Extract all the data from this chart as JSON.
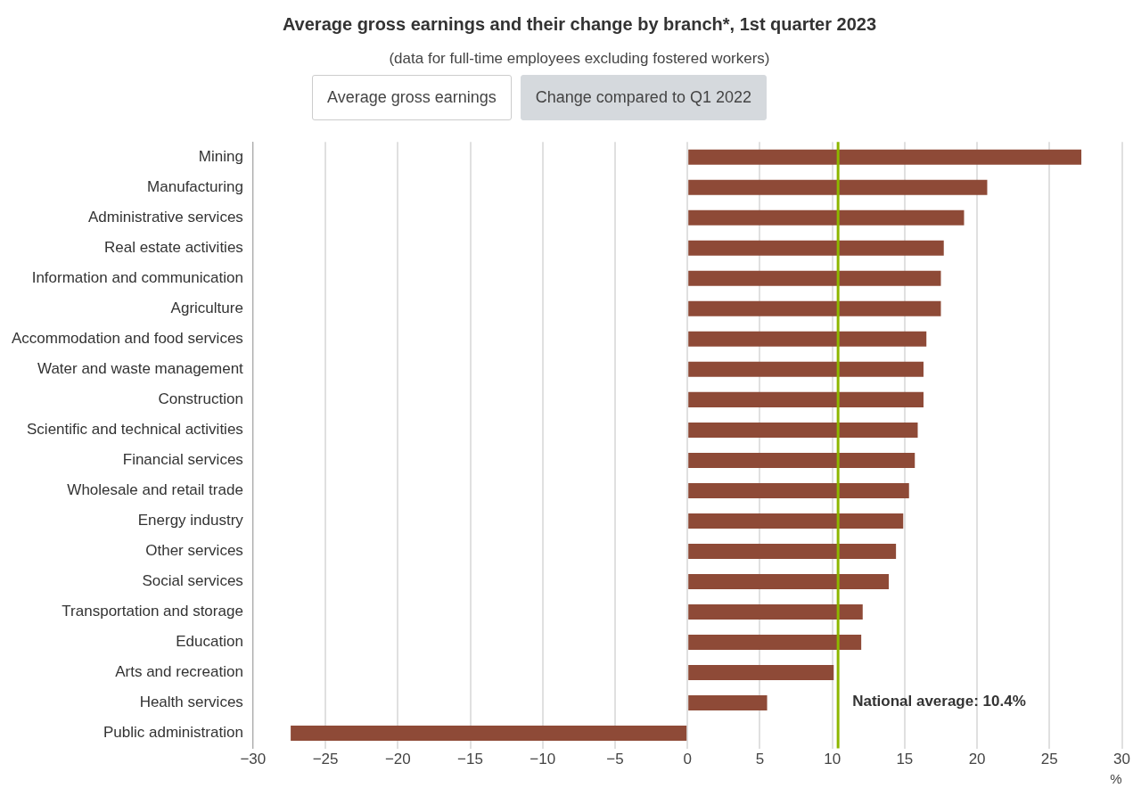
{
  "chart_data": {
    "type": "bar",
    "orientation": "horizontal",
    "title": "Average gross earnings and their change by branch*, 1st quarter 2023",
    "subtitle": "(data for full-time employees excluding fostered workers)",
    "annotations": [
      "Average gross earnings",
      "Change compared to Q1 2022"
    ],
    "xlabel": "%",
    "categories": [
      "Mining",
      "Manufacturing",
      "Administrative services",
      "Real estate activities",
      "Information and communication",
      "Agriculture",
      "Accommodation and food services",
      "Water and waste management",
      "Construction",
      "Scientific and technical activities",
      "Financial services",
      "Wholesale and retail trade",
      "Energy industry",
      "Other services",
      "Social services",
      "Transportation and storage",
      "Education",
      "Arts and recreation",
      "Health services",
      "Public administration"
    ],
    "values": [
      27.2,
      20.7,
      19.1,
      17.7,
      17.5,
      17.5,
      16.5,
      16.3,
      16.3,
      15.9,
      15.7,
      15.3,
      14.9,
      14.4,
      13.9,
      12.1,
      12.0,
      10.1,
      5.5,
      -27.4
    ],
    "color": "#8e4a37",
    "xlim": [
      -30,
      30
    ],
    "xticks": [
      -30,
      -25,
      -20,
      -15,
      -10,
      -5,
      0,
      5,
      10,
      15,
      20,
      25,
      30
    ],
    "ref_lines": [
      {
        "axis": "x",
        "value": 10.4,
        "label": "National average: 10.4%",
        "color": "#8db600"
      }
    ],
    "grid": "x",
    "legend": false
  }
}
